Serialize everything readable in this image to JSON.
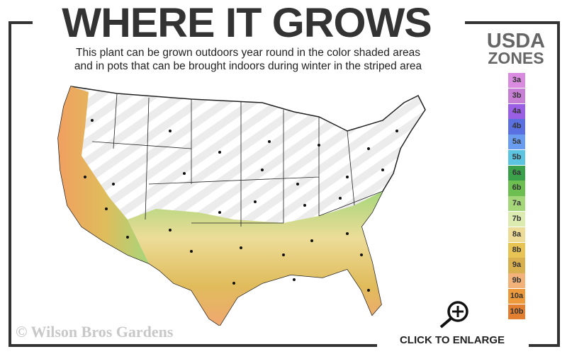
{
  "header": {
    "title": "WHERE IT GROWS",
    "subtitle_line1": "This plant can be grown outdoors year round in the color shaded areas",
    "subtitle_line2": "and in pots that can be brought indoors during winter in the striped area"
  },
  "legend": {
    "title_line1": "USDA",
    "title_line2": "ZONES",
    "zones": [
      {
        "label": "3a",
        "color": "#d98be0"
      },
      {
        "label": "3b",
        "color": "#c77fd6"
      },
      {
        "label": "4a",
        "color": "#9b5fe6"
      },
      {
        "label": "4b",
        "color": "#5a6fe0"
      },
      {
        "label": "5a",
        "color": "#6a9cf0"
      },
      {
        "label": "5b",
        "color": "#5cc4e0"
      },
      {
        "label": "6a",
        "color": "#3aa04a"
      },
      {
        "label": "6b",
        "color": "#6cbf50"
      },
      {
        "label": "7a",
        "color": "#a6d67a"
      },
      {
        "label": "7b",
        "color": "#dcecb0"
      },
      {
        "label": "8a",
        "color": "#ecdc98"
      },
      {
        "label": "8b",
        "color": "#e8c454"
      },
      {
        "label": "9a",
        "color": "#d9b050"
      },
      {
        "label": "9b",
        "color": "#f2b27a"
      },
      {
        "label": "10a",
        "color": "#ec9a3c"
      },
      {
        "label": "10b",
        "color": "#e27f30"
      }
    ]
  },
  "map": {
    "striped_area": "outdoor zones 3a-7a (pots only)",
    "icon": "usa-zone-map"
  },
  "footer": {
    "copyright": "© Wilson Bros Gardens",
    "enlarge_label": "CLICK TO ENLARGE",
    "enlarge_icon": "zoom-in-icon"
  }
}
